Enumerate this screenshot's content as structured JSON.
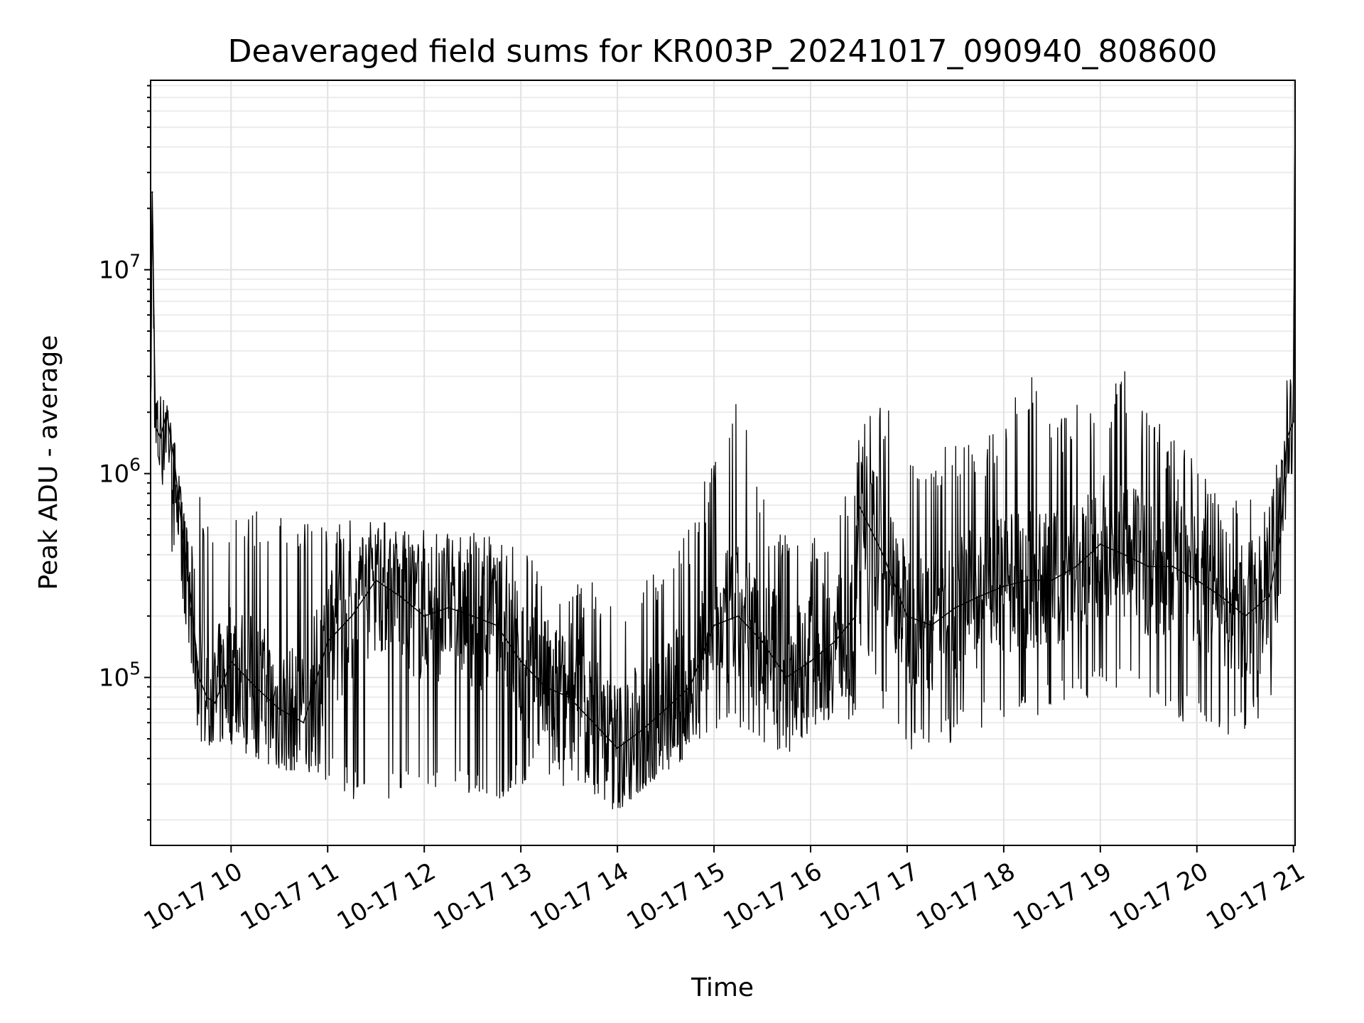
{
  "chart_data": {
    "type": "line",
    "title": "Deaveraged field sums for KR003P_20241017_090940_808600",
    "xlabel": "Time",
    "ylabel": "Peak ADU - average",
    "xlim": [
      "2024-10-17 09:10",
      "2024-10-17 21:01"
    ],
    "ylim": [
      15000,
      85000000
    ],
    "yscale": "log",
    "grid": true,
    "x_ticks": [
      {
        "value": "2024-10-17 10:00",
        "label": "10-17 10"
      },
      {
        "value": "2024-10-17 11:00",
        "label": "10-17 11"
      },
      {
        "value": "2024-10-17 12:00",
        "label": "10-17 12"
      },
      {
        "value": "2024-10-17 13:00",
        "label": "10-17 13"
      },
      {
        "value": "2024-10-17 14:00",
        "label": "10-17 14"
      },
      {
        "value": "2024-10-17 15:00",
        "label": "10-17 15"
      },
      {
        "value": "2024-10-17 16:00",
        "label": "10-17 16"
      },
      {
        "value": "2024-10-17 17:00",
        "label": "10-17 17"
      },
      {
        "value": "2024-10-17 18:00",
        "label": "10-17 18"
      },
      {
        "value": "2024-10-17 19:00",
        "label": "10-17 19"
      },
      {
        "value": "2024-10-17 20:00",
        "label": "10-17 20"
      },
      {
        "value": "2024-10-17 21:00",
        "label": "10-17 21"
      }
    ],
    "y_ticks": [
      {
        "value": 100000,
        "base": "10",
        "exp": "5"
      },
      {
        "value": 1000000,
        "base": "10",
        "exp": "6"
      },
      {
        "value": 10000000,
        "base": "10",
        "exp": "7"
      }
    ],
    "series": [
      {
        "color": "#000000",
        "x": [
          "2024-10-17 09:10",
          "2024-10-17 09:11",
          "2024-10-17 09:13",
          "2024-10-17 09:16",
          "2024-10-17 09:20",
          "2024-10-17 09:25",
          "2024-10-17 09:30",
          "2024-10-17 09:35",
          "2024-10-17 09:40",
          "2024-10-17 09:45",
          "2024-10-17 09:50",
          "2024-10-17 10:00",
          "2024-10-17 10:15",
          "2024-10-17 10:30",
          "2024-10-17 10:45",
          "2024-10-17 11:00",
          "2024-10-17 11:15",
          "2024-10-17 11:30",
          "2024-10-17 11:45",
          "2024-10-17 12:00",
          "2024-10-17 12:15",
          "2024-10-17 12:30",
          "2024-10-17 12:45",
          "2024-10-17 13:00",
          "2024-10-17 13:15",
          "2024-10-17 13:30",
          "2024-10-17 13:45",
          "2024-10-17 14:00",
          "2024-10-17 14:15",
          "2024-10-17 14:30",
          "2024-10-17 14:45",
          "2024-10-17 15:00",
          "2024-10-17 15:15",
          "2024-10-17 15:30",
          "2024-10-17 15:45",
          "2024-10-17 16:00",
          "2024-10-17 16:15",
          "2024-10-17 16:28",
          "2024-10-17 16:30",
          "2024-10-17 16:45",
          "2024-10-17 17:00",
          "2024-10-17 17:15",
          "2024-10-17 17:30",
          "2024-10-17 17:45",
          "2024-10-17 18:00",
          "2024-10-17 18:15",
          "2024-10-17 18:30",
          "2024-10-17 18:45",
          "2024-10-17 19:00",
          "2024-10-17 19:15",
          "2024-10-17 19:30",
          "2024-10-17 19:45",
          "2024-10-17 20:00",
          "2024-10-17 20:15",
          "2024-10-17 20:30",
          "2024-10-17 20:45",
          "2024-10-17 20:52",
          "2024-10-17 20:56",
          "2024-10-17 21:00",
          "2024-10-17 21:01"
        ],
        "y": [
          2000000,
          24000000,
          1700000,
          1500000,
          2000000,
          1100000,
          500000,
          250000,
          100000,
          80000,
          75000,
          120000,
          90000,
          70000,
          60000,
          150000,
          200000,
          300000,
          250000,
          200000,
          220000,
          200000,
          180000,
          120000,
          90000,
          80000,
          60000,
          45000,
          55000,
          70000,
          90000,
          180000,
          200000,
          150000,
          100000,
          120000,
          150000,
          200000,
          700000,
          400000,
          200000,
          180000,
          220000,
          250000,
          280000,
          300000,
          300000,
          350000,
          450000,
          400000,
          350000,
          350000,
          300000,
          250000,
          200000,
          250000,
          500000,
          1500000,
          1800000,
          60000000
        ],
        "envelope_high": [
          2300000,
          24000000,
          2200000,
          2400000,
          2200000,
          1400000,
          700000,
          400000,
          850000,
          800000,
          750000,
          700000,
          700000,
          650000,
          600000,
          650000,
          600000,
          580000,
          560000,
          550000,
          540000,
          520000,
          500000,
          450000,
          400000,
          300000,
          300000,
          250000,
          350000,
          400000,
          600000,
          1200000,
          2500000,
          800000,
          500000,
          600000,
          700000,
          1000000,
          1800000,
          2300000,
          1800000,
          1200000,
          1500000,
          1500000,
          1800000,
          3300000,
          1800000,
          2200000,
          2500000,
          3200000,
          2000000,
          1500000,
          1200000,
          700000,
          800000,
          700000,
          1500000,
          2900000,
          2900000,
          60000000
        ],
        "envelope_low": [
          1300000,
          1500000,
          1200000,
          1000000,
          700000,
          300000,
          200000,
          110000,
          50000,
          45000,
          50000,
          45000,
          40000,
          35000,
          35000,
          30000,
          25000,
          25000,
          25000,
          25000,
          25000,
          25000,
          25000,
          28000,
          30000,
          28000,
          25000,
          22000,
          28000,
          35000,
          38000,
          45000,
          50000,
          40000,
          40000,
          55000,
          55000,
          60000,
          150000,
          70000,
          40000,
          40000,
          50000,
          55000,
          55000,
          60000,
          70000,
          70000,
          80000,
          80000,
          70000,
          65000,
          55000,
          50000,
          55000,
          60000,
          100000,
          1000000,
          1000000,
          1000000
        ]
      }
    ]
  }
}
